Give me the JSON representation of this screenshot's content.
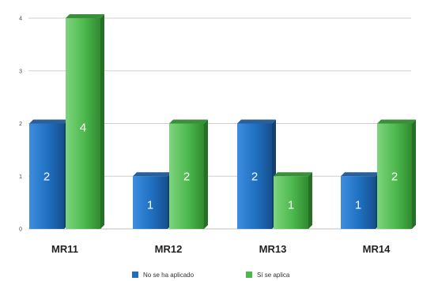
{
  "chart_data": {
    "type": "bar",
    "categories": [
      "MR11",
      "MR12",
      "MR13",
      "MR14"
    ],
    "series": [
      {
        "name": "No se ha aplicado",
        "values": [
          2,
          1,
          2,
          1
        ],
        "color": "#1f6fc0"
      },
      {
        "name": "Sí se aplica",
        "values": [
          4,
          2,
          1,
          2
        ],
        "color": "#4cb84c"
      }
    ],
    "data_labels": [
      [
        "2",
        "1",
        "2",
        "1"
      ],
      [
        "4",
        "2",
        "1",
        "2"
      ]
    ],
    "yticks": [
      "0",
      "1",
      "2",
      "3",
      "4"
    ],
    "ylim": [
      0,
      4
    ],
    "grid": true,
    "legend": "bottom",
    "title": "",
    "xlabel": "",
    "ylabel": ""
  }
}
